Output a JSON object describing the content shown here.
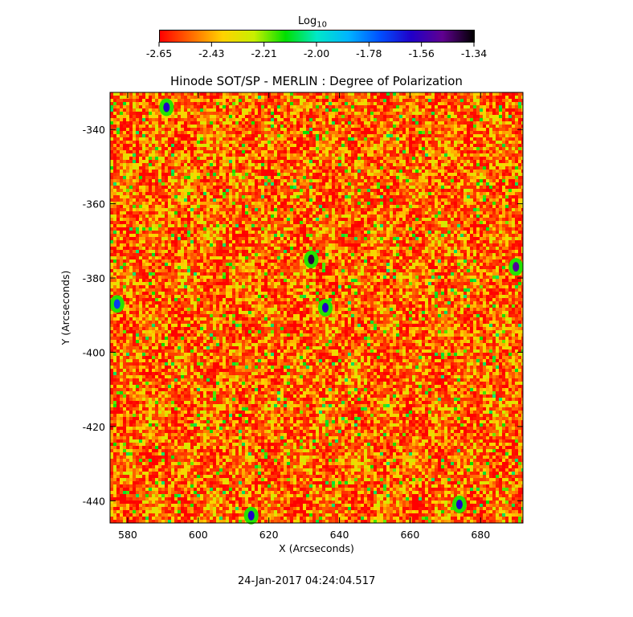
{
  "colorbar": {
    "label_base": "Log",
    "label_sub": "10",
    "ticks": [
      "-2.65",
      "-2.43",
      "-2.21",
      "-2.00",
      "-1.78",
      "-1.56",
      "-1.34"
    ],
    "colors": [
      "#ff0000",
      "#ff6a00",
      "#ffd200",
      "#c8f000",
      "#00e000",
      "#00e8c8",
      "#00b4ff",
      "#0050ff",
      "#2000c8",
      "#600090",
      "#000000"
    ]
  },
  "title": "Hinode SOT/SP - MERLIN : Degree of Polarization",
  "timestamp": "24-Jan-2017 04:24:04.517",
  "chart_data": {
    "type": "heatmap",
    "title": "Hinode SOT/SP - MERLIN : Degree of Polarization",
    "xlabel": "X (Arcseconds)",
    "ylabel": "Y (Arcseconds)",
    "xlim": [
      575,
      692
    ],
    "ylim": [
      -446,
      -330
    ],
    "x_ticks": [
      580,
      600,
      620,
      640,
      660,
      680
    ],
    "y_ticks": [
      -340,
      -360,
      -380,
      -400,
      -420,
      -440
    ],
    "x_tick_labels": [
      "580",
      "600",
      "620",
      "640",
      "660",
      "680"
    ],
    "y_tick_labels": [
      "-340",
      "-360",
      "-380",
      "-400",
      "-420",
      "-440"
    ],
    "colorbar_range": [
      -2.65,
      -1.34
    ],
    "colorbar_scale": "log10",
    "dominant_value_range": [
      -2.65,
      -2.3
    ],
    "grid": false,
    "features": [
      {
        "label": "high polarization patch",
        "x": 632,
        "y": -375,
        "value": -1.4
      },
      {
        "label": "high polarization patch",
        "x": 636,
        "y": -388,
        "value": -1.6
      },
      {
        "label": "high polarization patch",
        "x": 615,
        "y": -444,
        "value": -1.6
      },
      {
        "label": "high polarization patch",
        "x": 674,
        "y": -441,
        "value": -1.6
      },
      {
        "label": "high polarization patch",
        "x": 591,
        "y": -334,
        "value": -1.6
      },
      {
        "label": "high polarization patch",
        "x": 690,
        "y": -377,
        "value": -1.5
      },
      {
        "label": "high polarization patch",
        "x": 577,
        "y": -387,
        "value": -1.7
      }
    ]
  }
}
